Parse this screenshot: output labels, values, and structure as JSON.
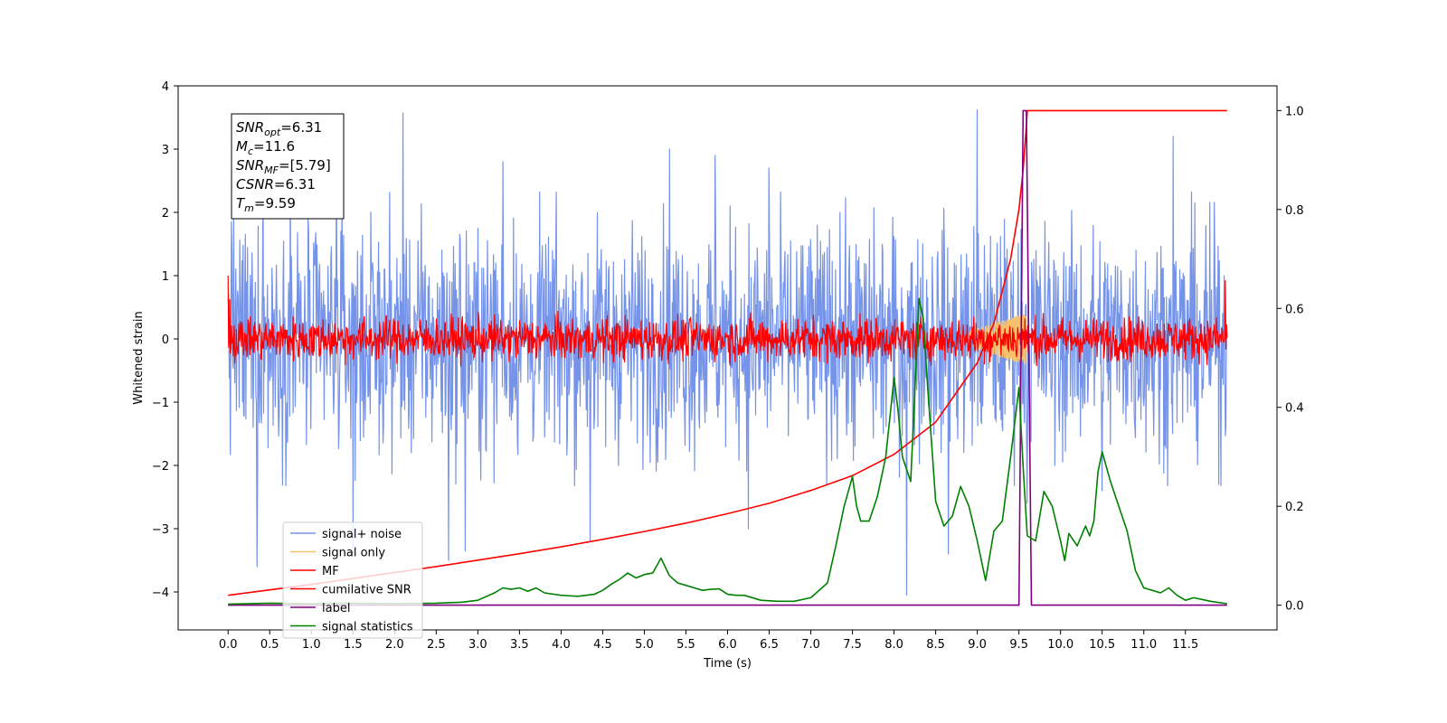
{
  "chart_data": {
    "type": "line",
    "title": "",
    "xlabel": "Time (s)",
    "ylabel": "Whitened strain",
    "xlim": [
      -0.6,
      12.6
    ],
    "ylim": [
      -4.6,
      4.0
    ],
    "y2lim": [
      -0.05,
      1.05
    ],
    "xticks": [
      "0.0",
      "0.5",
      "1.0",
      "1.5",
      "2.0",
      "2.5",
      "3.0",
      "3.5",
      "4.0",
      "4.5",
      "5.0",
      "5.5",
      "6.0",
      "6.5",
      "7.0",
      "7.5",
      "8.0",
      "8.5",
      "9.0",
      "9.5",
      "10.0",
      "10.5",
      "11.0",
      "11.5"
    ],
    "yticks": [
      "4",
      "3",
      "2",
      "1",
      "0",
      "−1",
      "−2",
      "−3",
      "−4"
    ],
    "y2ticks": [
      "1.0",
      "0.8",
      "0.6",
      "0.4",
      "0.2",
      "0.0"
    ],
    "grid": false,
    "legend_position": "lower-left",
    "annotation": {
      "lines": [
        {
          "sym": "SNR",
          "sub": "opt",
          "rest": "=6.31"
        },
        {
          "sym": "M",
          "sub": "c",
          "rest": "=11.6"
        },
        {
          "sym": "SNR",
          "sub": "MF",
          "rest": "=[5.79]"
        },
        {
          "sym": "CSNR",
          "sub": "",
          "rest": "=6.31"
        },
        {
          "sym": "T",
          "sub": "m",
          "rest": "=9.59"
        }
      ]
    },
    "series": [
      {
        "name": "signal+ noise",
        "color": "#7593e8",
        "axis": "left",
        "style": "noise",
        "t_range": [
          0.0,
          12.0
        ],
        "band_amplitude": 1.6,
        "spikes": [
          [
            0.07,
            1.95
          ],
          [
            0.35,
            -3.6
          ],
          [
            0.42,
            2.6
          ],
          [
            0.75,
            3.0
          ],
          [
            1.3,
            2.9
          ],
          [
            1.5,
            -3.3
          ],
          [
            2.1,
            3.57
          ],
          [
            2.65,
            -3.5
          ],
          [
            2.85,
            -3.35
          ],
          [
            3.3,
            2.8
          ],
          [
            4.35,
            -3.2
          ],
          [
            5.3,
            3.0
          ],
          [
            5.85,
            2.9
          ],
          [
            6.25,
            -3.0
          ],
          [
            6.5,
            2.7
          ],
          [
            7.35,
            2.0
          ],
          [
            8.15,
            -4.05
          ],
          [
            8.65,
            -3.4
          ],
          [
            9.0,
            3.62
          ],
          [
            9.6,
            -2.6
          ],
          [
            10.5,
            -2.4
          ],
          [
            11.35,
            3.2
          ],
          [
            11.9,
            -2.3
          ]
        ]
      },
      {
        "name": "signal only",
        "color": "#f5c26b",
        "axis": "left",
        "style": "chirp",
        "t_range": [
          8.9,
          9.59
        ],
        "amplitude": 0.4
      },
      {
        "name": "MF",
        "color": "#ff0000",
        "axis": "left",
        "style": "noise",
        "t_range": [
          0.0,
          12.0
        ],
        "band_amplitude": 0.3,
        "spikes": [
          [
            0.0,
            1.0
          ],
          [
            0.02,
            0.62
          ],
          [
            11.98,
            0.92
          ]
        ]
      },
      {
        "name": "cumilative SNR",
        "color": "#ff0000",
        "axis": "right",
        "style": "line",
        "x": [
          0.0,
          0.5,
          1.0,
          1.5,
          2.0,
          2.5,
          3.0,
          3.5,
          4.0,
          4.5,
          5.0,
          5.5,
          6.0,
          6.5,
          7.0,
          7.5,
          8.0,
          8.5,
          9.0,
          9.2,
          9.4,
          9.5,
          9.55,
          9.59,
          9.6,
          12.0
        ],
        "y": [
          0.02,
          0.031,
          0.042,
          0.054,
          0.066,
          0.078,
          0.091,
          0.104,
          0.118,
          0.133,
          0.149,
          0.166,
          0.185,
          0.206,
          0.232,
          0.262,
          0.305,
          0.37,
          0.49,
          0.57,
          0.7,
          0.8,
          0.88,
          0.97,
          1.0,
          1.0
        ]
      },
      {
        "name": "label",
        "color": "#800080",
        "axis": "right",
        "style": "line",
        "x": [
          0.0,
          9.5,
          9.55,
          9.59,
          9.65,
          12.0
        ],
        "y": [
          0.0,
          0.0,
          1.0,
          1.0,
          0.0,
          0.0
        ]
      },
      {
        "name": "signal statistics",
        "color": "#008000",
        "axis": "right",
        "style": "line",
        "x": [
          0.0,
          0.5,
          1.0,
          1.5,
          2.0,
          2.5,
          2.8,
          3.0,
          3.2,
          3.3,
          3.4,
          3.5,
          3.6,
          3.7,
          3.8,
          4.0,
          4.2,
          4.4,
          4.5,
          4.6,
          4.7,
          4.8,
          4.9,
          5.0,
          5.1,
          5.2,
          5.3,
          5.4,
          5.5,
          5.6,
          5.7,
          5.8,
          5.9,
          6.0,
          6.1,
          6.2,
          6.4,
          6.6,
          6.8,
          7.0,
          7.2,
          7.3,
          7.4,
          7.45,
          7.5,
          7.55,
          7.6,
          7.7,
          7.8,
          7.9,
          7.95,
          8.0,
          8.05,
          8.1,
          8.2,
          8.3,
          8.35,
          8.4,
          8.5,
          8.6,
          8.7,
          8.8,
          8.9,
          9.0,
          9.1,
          9.2,
          9.3,
          9.4,
          9.5,
          9.55,
          9.6,
          9.7,
          9.8,
          9.9,
          10.0,
          10.05,
          10.1,
          10.2,
          10.3,
          10.35,
          10.4,
          10.45,
          10.5,
          10.6,
          10.7,
          10.8,
          10.9,
          11.0,
          11.1,
          11.2,
          11.3,
          11.4,
          11.5,
          11.6,
          11.8,
          12.0
        ],
        "y": [
          0.002,
          0.004,
          0.003,
          0.004,
          0.003,
          0.004,
          0.006,
          0.01,
          0.025,
          0.035,
          0.032,
          0.035,
          0.028,
          0.035,
          0.025,
          0.02,
          0.018,
          0.022,
          0.03,
          0.042,
          0.052,
          0.065,
          0.055,
          0.062,
          0.065,
          0.095,
          0.06,
          0.045,
          0.04,
          0.035,
          0.03,
          0.032,
          0.033,
          0.022,
          0.02,
          0.02,
          0.01,
          0.008,
          0.008,
          0.015,
          0.045,
          0.12,
          0.2,
          0.23,
          0.26,
          0.2,
          0.17,
          0.17,
          0.22,
          0.3,
          0.38,
          0.46,
          0.39,
          0.3,
          0.25,
          0.62,
          0.58,
          0.45,
          0.21,
          0.16,
          0.18,
          0.24,
          0.2,
          0.13,
          0.05,
          0.15,
          0.17,
          0.3,
          0.44,
          0.28,
          0.14,
          0.13,
          0.23,
          0.2,
          0.13,
          0.09,
          0.145,
          0.12,
          0.16,
          0.14,
          0.17,
          0.27,
          0.31,
          0.25,
          0.2,
          0.15,
          0.07,
          0.035,
          0.03,
          0.025,
          0.035,
          0.02,
          0.01,
          0.015,
          0.008,
          0.003
        ]
      }
    ]
  }
}
